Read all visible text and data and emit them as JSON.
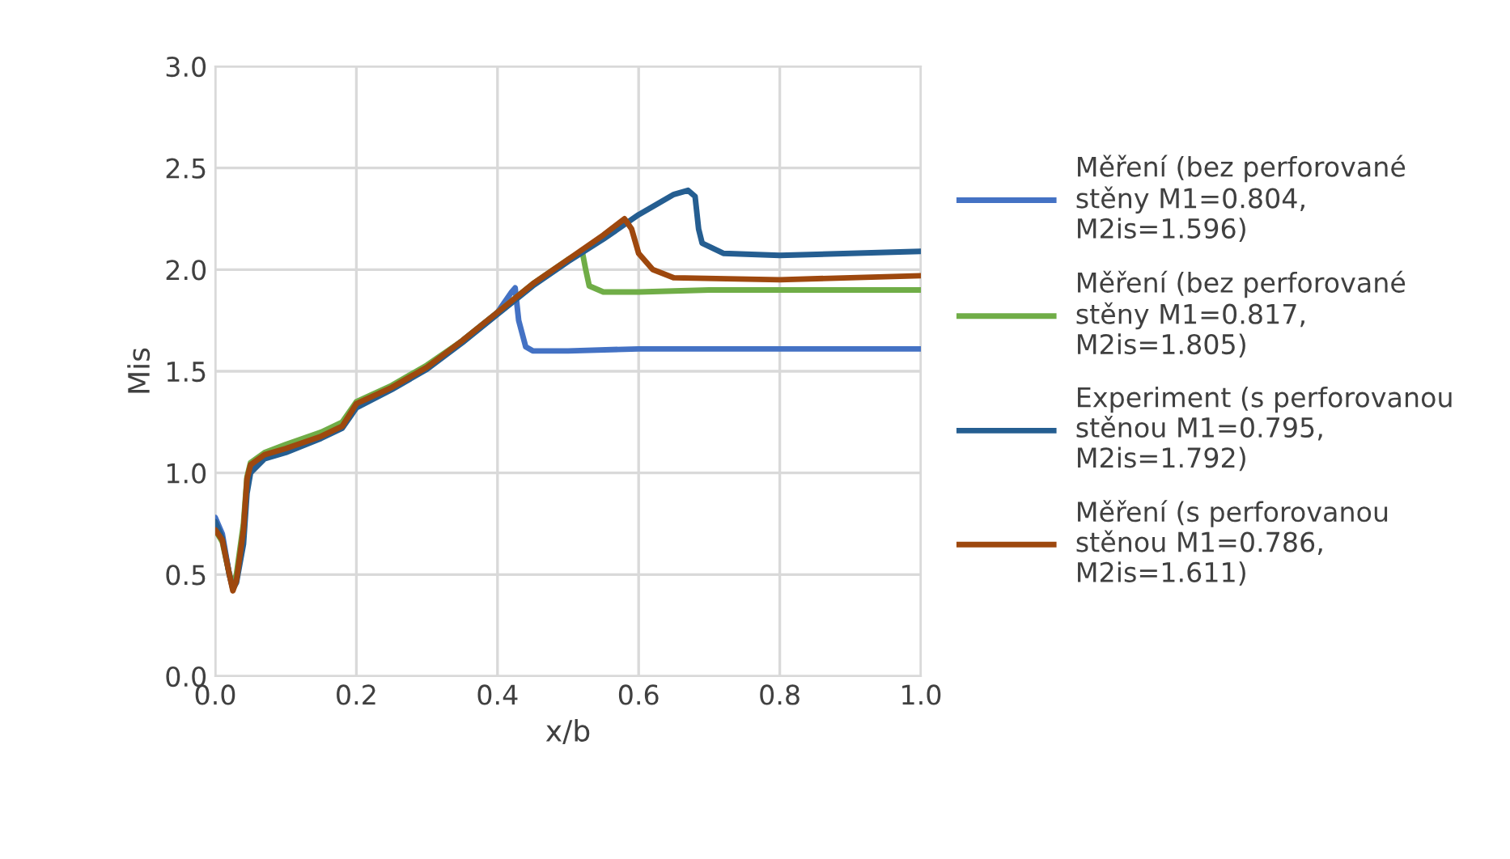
{
  "chart_data": {
    "type": "line",
    "xlabel": "x/b",
    "ylabel": "Mis",
    "xlim": [
      0,
      1
    ],
    "ylim": [
      0,
      3
    ],
    "xticks": [
      {
        "value": 0,
        "label": "0.0"
      },
      {
        "value": 0.2,
        "label": "0.2"
      },
      {
        "value": 0.4,
        "label": "0.4"
      },
      {
        "value": 0.6,
        "label": "0.6"
      },
      {
        "value": 0.8,
        "label": "0.8"
      },
      {
        "value": 1,
        "label": "1.0"
      }
    ],
    "yticks": [
      {
        "value": 0,
        "label": "0.0"
      },
      {
        "value": 0.5,
        "label": "0.5"
      },
      {
        "value": 1,
        "label": "1.0"
      },
      {
        "value": 1.5,
        "label": "1.5"
      },
      {
        "value": 2,
        "label": "2.0"
      },
      {
        "value": 2.5,
        "label": "2.5"
      },
      {
        "value": 3,
        "label": "3.0"
      }
    ],
    "grid": true,
    "legend": "right",
    "marker": "none",
    "line_style": "solid",
    "series": [
      {
        "name": "Měření (bez perforované stěny M1=0.804, M2is=1.596)",
        "color": "#4472c4",
        "x": [
          0,
          0.01,
          0.02,
          0.025,
          0.03,
          0.04,
          0.045,
          0.05,
          0.07,
          0.1,
          0.15,
          0.18,
          0.2,
          0.25,
          0.3,
          0.35,
          0.4,
          0.42,
          0.425,
          0.43,
          0.44,
          0.45,
          0.5,
          0.6,
          0.8,
          1.0
        ],
        "values": [
          0.78,
          0.7,
          0.5,
          0.43,
          0.48,
          0.7,
          0.95,
          1.02,
          1.08,
          1.12,
          1.18,
          1.24,
          1.33,
          1.42,
          1.52,
          1.65,
          1.79,
          1.89,
          1.91,
          1.75,
          1.62,
          1.6,
          1.6,
          1.61,
          1.61,
          1.61
        ]
      },
      {
        "name": "Měření (bez perforované stěny M1=0.817, M2is=1.805)",
        "color": "#70ad47",
        "x": [
          0,
          0.01,
          0.02,
          0.025,
          0.03,
          0.04,
          0.045,
          0.05,
          0.07,
          0.1,
          0.15,
          0.18,
          0.2,
          0.25,
          0.3,
          0.35,
          0.4,
          0.45,
          0.5,
          0.52,
          0.525,
          0.53,
          0.55,
          0.6,
          0.7,
          1.0
        ],
        "values": [
          0.72,
          0.66,
          0.5,
          0.45,
          0.5,
          0.75,
          0.98,
          1.05,
          1.1,
          1.14,
          1.2,
          1.25,
          1.35,
          1.43,
          1.53,
          1.65,
          1.79,
          1.93,
          2.05,
          2.09,
          2.0,
          1.92,
          1.89,
          1.89,
          1.9,
          1.9
        ]
      },
      {
        "name": "Experiment (s perforovanou stěnou M1=0.795, M2is=1.792)",
        "color": "#255e91",
        "x": [
          0,
          0.01,
          0.02,
          0.025,
          0.03,
          0.04,
          0.045,
          0.05,
          0.07,
          0.1,
          0.15,
          0.18,
          0.2,
          0.25,
          0.3,
          0.35,
          0.4,
          0.45,
          0.5,
          0.55,
          0.6,
          0.65,
          0.67,
          0.68,
          0.685,
          0.69,
          0.72,
          0.8,
          1.0
        ],
        "values": [
          0.76,
          0.68,
          0.5,
          0.43,
          0.46,
          0.65,
          0.9,
          1.0,
          1.07,
          1.1,
          1.17,
          1.22,
          1.32,
          1.41,
          1.51,
          1.64,
          1.78,
          1.92,
          2.04,
          2.15,
          2.27,
          2.37,
          2.39,
          2.36,
          2.2,
          2.13,
          2.08,
          2.07,
          2.09
        ]
      },
      {
        "name": "Měření (s perforovanou stěnou M1=0.786, M2is=1.611)",
        "color": "#9e480e",
        "x": [
          0,
          0.01,
          0.02,
          0.025,
          0.03,
          0.04,
          0.045,
          0.05,
          0.07,
          0.1,
          0.15,
          0.18,
          0.2,
          0.25,
          0.3,
          0.35,
          0.4,
          0.45,
          0.5,
          0.55,
          0.58,
          0.59,
          0.6,
          0.62,
          0.65,
          0.8,
          1.0
        ],
        "values": [
          0.72,
          0.67,
          0.5,
          0.42,
          0.47,
          0.72,
          0.97,
          1.04,
          1.09,
          1.12,
          1.18,
          1.23,
          1.34,
          1.42,
          1.52,
          1.65,
          1.79,
          1.93,
          2.05,
          2.17,
          2.25,
          2.2,
          2.08,
          2.0,
          1.96,
          1.95,
          1.97
        ]
      }
    ]
  }
}
